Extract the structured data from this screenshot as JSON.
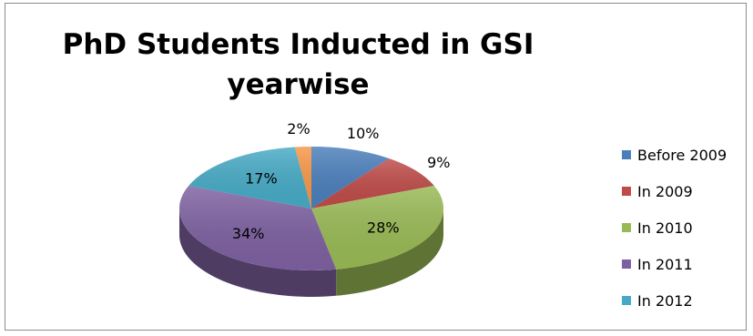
{
  "chart_data": {
    "type": "pie",
    "title": "PhD Students Inducted in GSI yearwise",
    "categories": [
      "Before 2009",
      "In 2009",
      "In 2010",
      "In 2011",
      "In 2012",
      ""
    ],
    "values": [
      10,
      9,
      28,
      34,
      17,
      2
    ],
    "labels": [
      "10%",
      "9%",
      "28%",
      "34%",
      "17%",
      "2%"
    ],
    "colors": [
      "#4a7ebb",
      "#be4b48",
      "#98b954",
      "#7d60a0",
      "#46aac5",
      "#f79646"
    ],
    "legend_position": "right",
    "style": "3d"
  },
  "legend": [
    {
      "label": "Before 2009",
      "color": "#4a7ebb"
    },
    {
      "label": "In 2009",
      "color": "#be4b48"
    },
    {
      "label": "In 2010",
      "color": "#98b954"
    },
    {
      "label": "In 2011",
      "color": "#7d60a0"
    },
    {
      "label": "In 2012",
      "color": "#46aac5"
    }
  ]
}
